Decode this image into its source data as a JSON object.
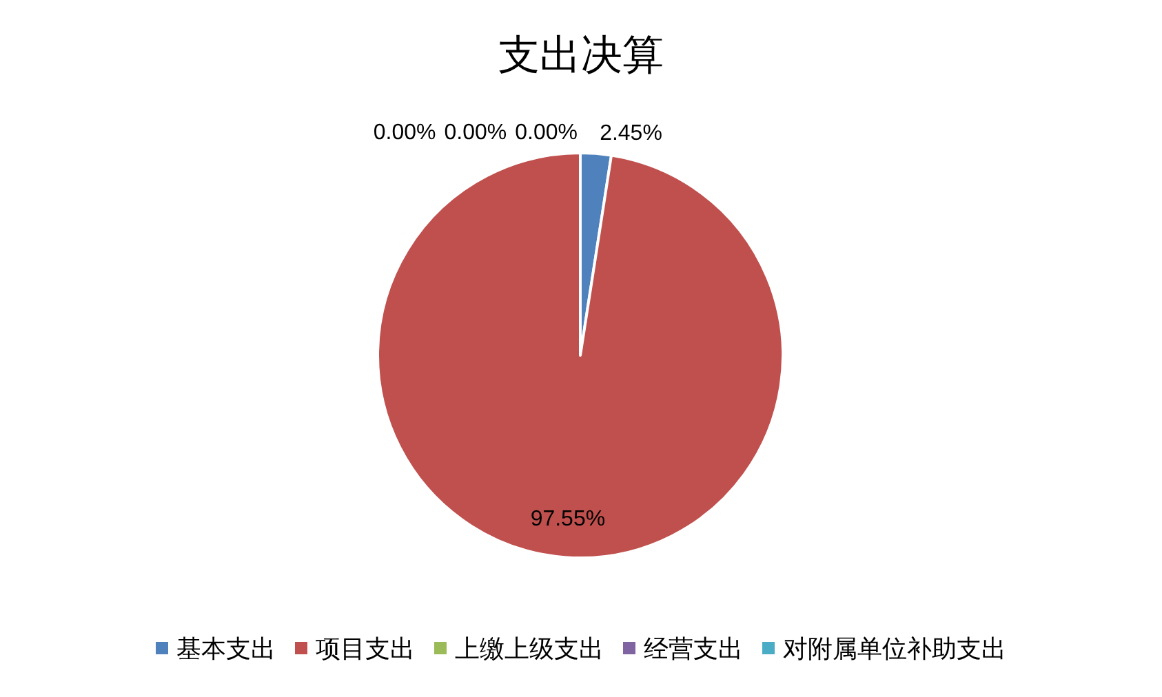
{
  "chart_data": {
    "type": "pie",
    "title": "支出决算",
    "categories": [
      "基本支出",
      "项目支出",
      "上缴上级支出",
      "经营支出",
      "对附属单位补助支出"
    ],
    "values": [
      2.45,
      97.55,
      0,
      0,
      0
    ],
    "colors": [
      "#4f81bd",
      "#c0504d",
      "#9bbb59",
      "#8064a2",
      "#4bacc6"
    ],
    "value_labels": [
      "2.45%",
      "97.55%",
      "0.00%",
      "0.00%",
      "0.00%"
    ],
    "legend": "bottom"
  }
}
